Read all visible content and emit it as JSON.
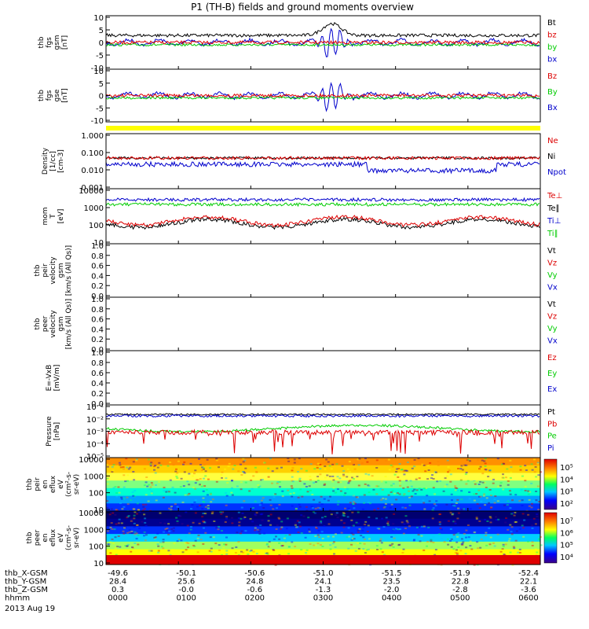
{
  "title": "P1 (TH-B) fields and ground moments overview",
  "colors": {
    "black": "#000000",
    "red": "#dd0000",
    "green": "#00cc00",
    "blue": "#0000cc",
    "yellow": "#ffff00",
    "dark_blue": "#000066"
  },
  "chart_data": [
    {
      "type": "line",
      "ylabel": [
        "thb",
        "fgs",
        "gsm",
        "[nT]"
      ],
      "yticks": [
        "10",
        "5",
        "0",
        "-5",
        "-10"
      ],
      "ylim": [
        -10,
        10
      ],
      "legend": [
        {
          "label": "Bt",
          "color": "#000000"
        },
        {
          "label": "bz",
          "color": "#dd0000"
        },
        {
          "label": "by",
          "color": "#00cc00"
        },
        {
          "label": "bx",
          "color": "#0000cc"
        }
      ]
    },
    {
      "type": "line",
      "ylabel": [
        "thb",
        "fgs",
        "gse",
        "[nT]"
      ],
      "yticks": [
        "10",
        "5",
        "0",
        "-5",
        "-10"
      ],
      "ylim": [
        -12,
        12
      ],
      "legend": [
        {
          "label": "Bz",
          "color": "#dd0000"
        },
        {
          "label": "By",
          "color": "#00cc00"
        },
        {
          "label": "Bx",
          "color": "#0000cc"
        }
      ]
    },
    {
      "type": "line",
      "ylabel": [
        "Density",
        "[1/cc]",
        "[cm-3]"
      ],
      "yticks": [
        "1.000",
        "0.100",
        "0.010",
        "0.001"
      ],
      "scale": "log",
      "legend": [
        {
          "label": "Ne",
          "color": "#dd0000"
        },
        {
          "label": "Ni",
          "color": "#000000"
        },
        {
          "label": "Npot",
          "color": "#0000cc"
        }
      ]
    },
    {
      "type": "line",
      "ylabel": [
        "mom",
        "T",
        "[eV]"
      ],
      "yticks": [
        "10000",
        "1000",
        "100",
        "10"
      ],
      "scale": "log",
      "legend": [
        {
          "label": "Te⊥",
          "color": "#dd0000"
        },
        {
          "label": "Te∥",
          "color": "#000000"
        },
        {
          "label": "Ti⊥",
          "color": "#0000cc"
        },
        {
          "label": "Ti∥",
          "color": "#00cc00"
        }
      ]
    },
    {
      "type": "line",
      "ylabel": [
        "thb",
        "peir",
        "velocity",
        "gsm",
        "[km/s (All Qs)]"
      ],
      "yticks": [
        "1.0",
        "0.8",
        "0.6",
        "0.4",
        "0.2",
        "0.0"
      ],
      "legend": [
        {
          "label": "Vt",
          "color": "#000000"
        },
        {
          "label": "Vz",
          "color": "#dd0000"
        },
        {
          "label": "Vy",
          "color": "#00cc00"
        },
        {
          "label": "Vx",
          "color": "#0000cc"
        }
      ]
    },
    {
      "type": "line",
      "ylabel": [
        "thb",
        "peer",
        "velocity",
        "gsm",
        "[km/s (All Qs)]"
      ],
      "yticks": [
        "1.0",
        "0.8",
        "0.6",
        "0.4",
        "0.2",
        "0.0"
      ],
      "legend": [
        {
          "label": "Vt",
          "color": "#000000"
        },
        {
          "label": "Vz",
          "color": "#dd0000"
        },
        {
          "label": "Vy",
          "color": "#00cc00"
        },
        {
          "label": "Vx",
          "color": "#0000cc"
        }
      ]
    },
    {
      "type": "line",
      "ylabel": [
        "E=-VxB",
        "[mV/m]"
      ],
      "yticks": [
        "1.0",
        "0.8",
        "0.6",
        "0.4",
        "0.2",
        "0.0"
      ],
      "legend": [
        {
          "label": "Ez",
          "color": "#dd0000"
        },
        {
          "label": "Ey",
          "color": "#00cc00"
        },
        {
          "label": "Ex",
          "color": "#0000cc"
        }
      ]
    },
    {
      "type": "line",
      "ylabel": [
        "Pressure",
        "[nPa]"
      ],
      "yticks": [
        "10⁻¹",
        "10⁻²",
        "10⁻³",
        "10⁻⁴",
        "10⁻⁵"
      ],
      "scale": "log",
      "legend": [
        {
          "label": "Pt",
          "color": "#000000"
        },
        {
          "label": "Pb",
          "color": "#dd0000"
        },
        {
          "label": "Pe",
          "color": "#00cc00"
        },
        {
          "label": "Pi",
          "color": "#0000cc"
        }
      ]
    },
    {
      "type": "heatmap",
      "ylabel": [
        "thb",
        "peir",
        "en",
        "eflux",
        "eV",
        "(cm²-s-",
        "sr-eV)"
      ],
      "yticks": [
        "10000",
        "1000",
        "100",
        "10"
      ],
      "colorbar_ticks": [
        "10⁵",
        "10⁴",
        "10³",
        "10²"
      ]
    },
    {
      "type": "heatmap",
      "ylabel": [
        "thb",
        "peer",
        "en",
        "eflux",
        "eV",
        "(cm²-s-",
        "sr-eV)"
      ],
      "yticks": [
        "10000",
        "1000",
        "100",
        "10"
      ],
      "colorbar_ticks": [
        "10⁷",
        "10⁶",
        "10⁵",
        "10⁴"
      ]
    }
  ],
  "xaxis": {
    "rows": [
      {
        "label": "thb_X-GSM",
        "values": [
          "-49.6",
          "-50.1",
          "-50.6",
          "-51.0",
          "-51.5",
          "-51.9",
          "-52.4"
        ]
      },
      {
        "label": "thb_Y-GSM",
        "values": [
          "28.4",
          "25.6",
          "24.8",
          "24.1",
          "23.5",
          "22.8",
          "22.1"
        ]
      },
      {
        "label": "thb_Z-GSM",
        "values": [
          "0.3",
          "-0.0",
          "-0.6",
          "-1.3",
          "-2.0",
          "-2.8",
          "-3.6"
        ]
      },
      {
        "label": "hhmm",
        "values": [
          "0000",
          "0100",
          "0200",
          "0300",
          "0400",
          "0500",
          "0600"
        ]
      }
    ],
    "date": "2013 Aug 19"
  }
}
